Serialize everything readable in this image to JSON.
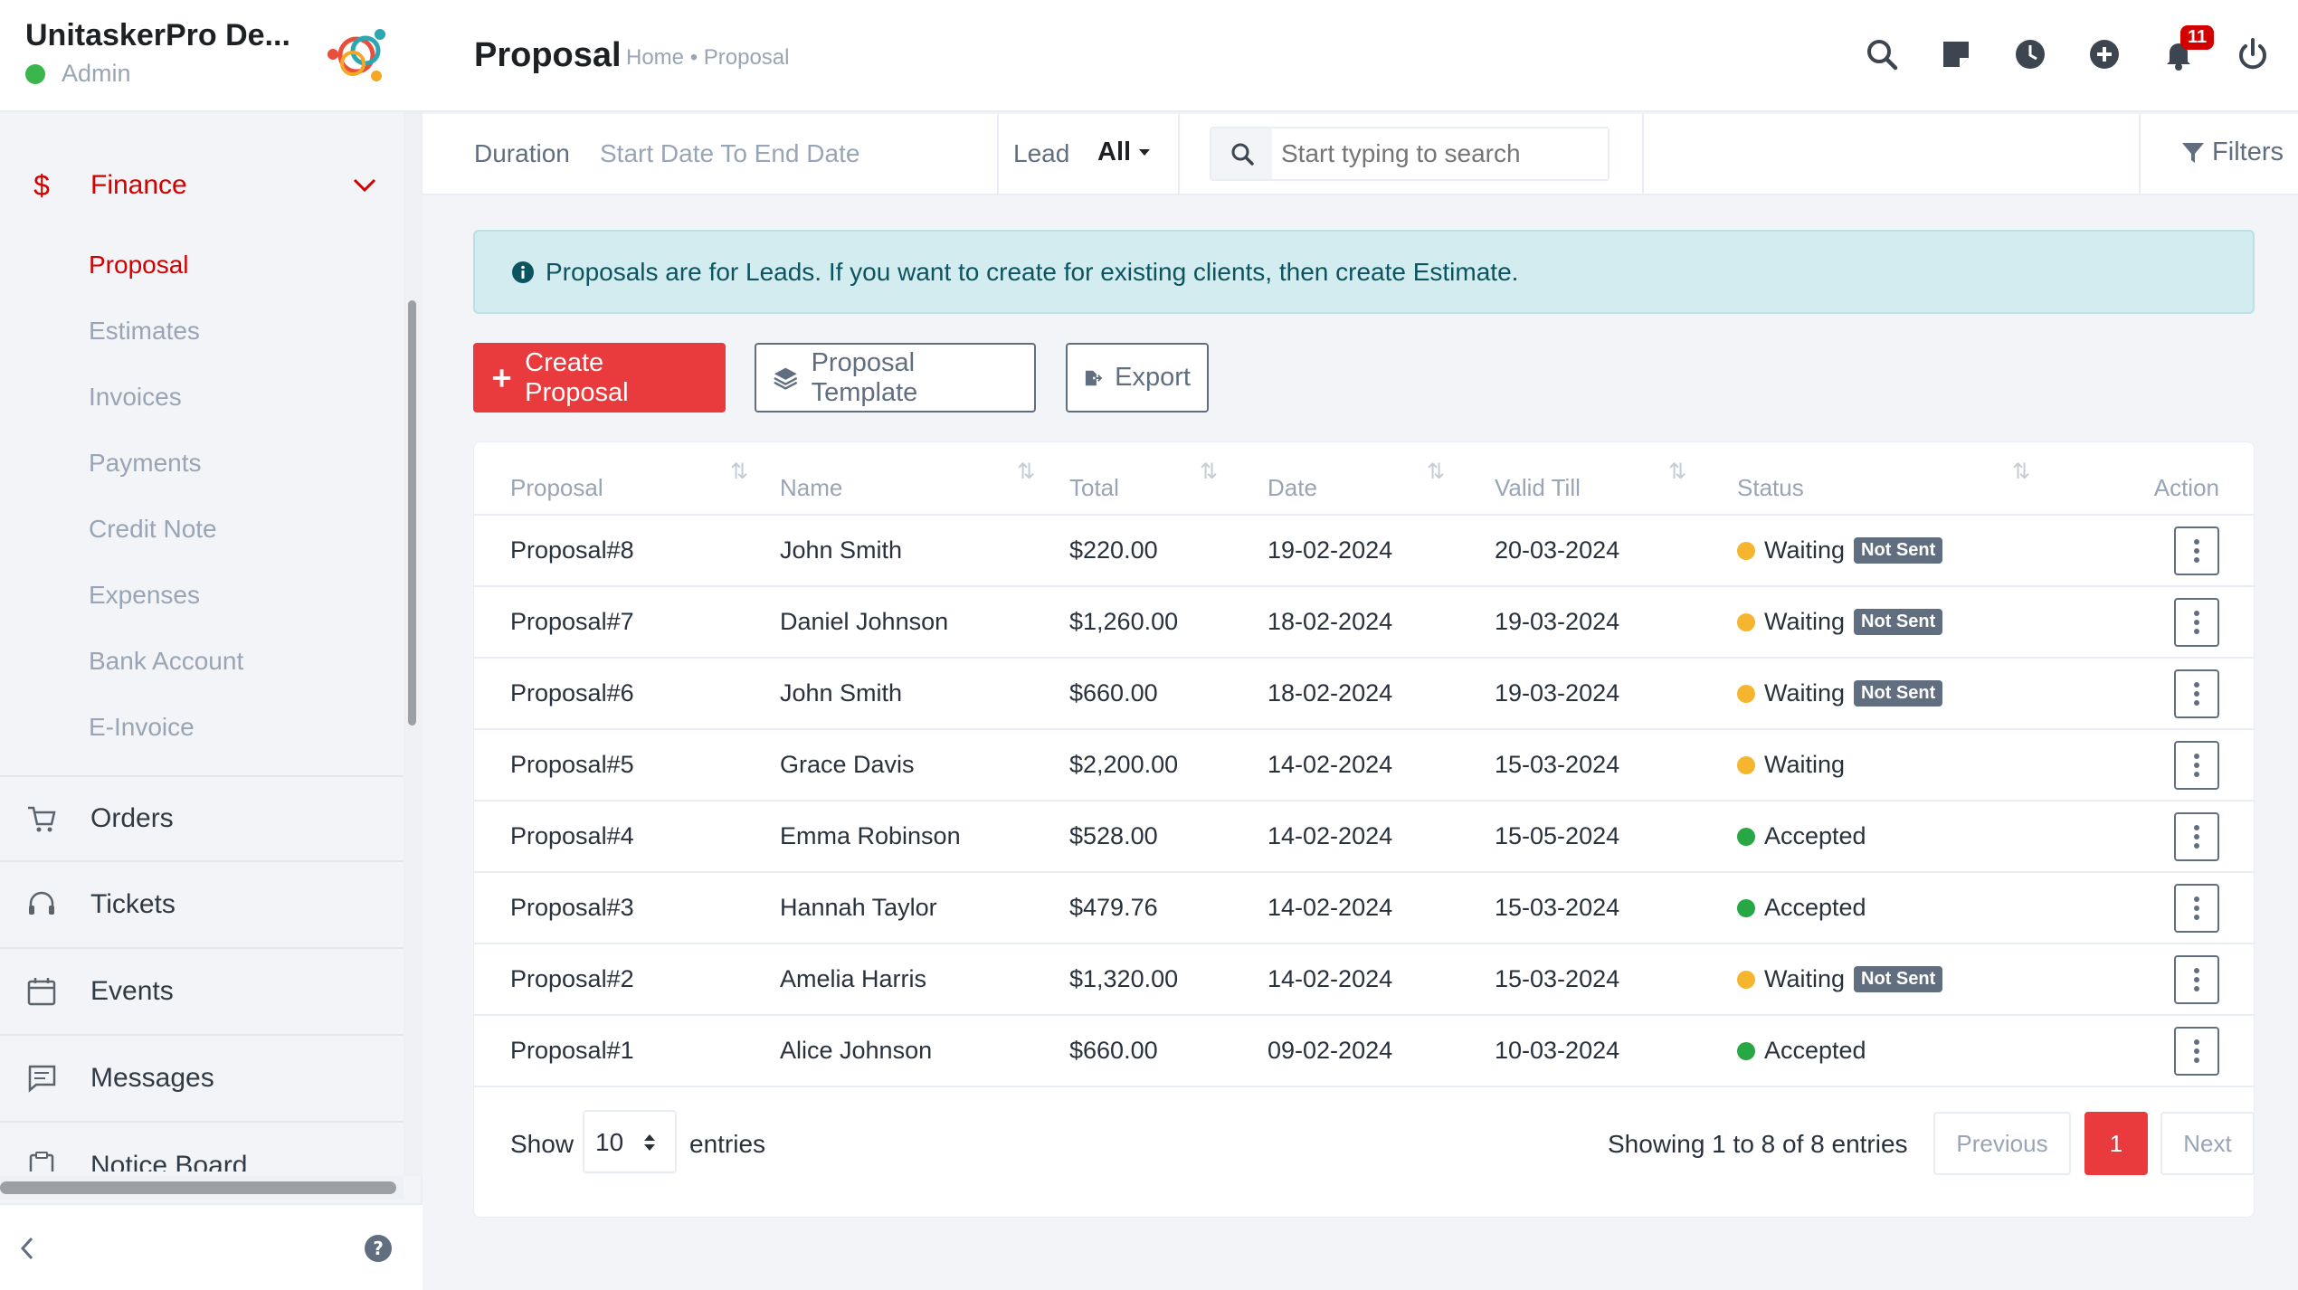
{
  "app": {
    "company": "UnitaskerPro De...",
    "role": "Admin"
  },
  "sidebar": {
    "finance": {
      "label": "Finance",
      "icon": "dollar-icon"
    },
    "finance_items": [
      "Proposal",
      "Estimates",
      "Invoices",
      "Payments",
      "Credit Note",
      "Expenses",
      "Bank Account",
      "E-Invoice"
    ],
    "main_items": [
      {
        "label": "Orders",
        "icon": "cart-icon"
      },
      {
        "label": "Tickets",
        "icon": "headset-icon"
      },
      {
        "label": "Events",
        "icon": "calendar-icon"
      },
      {
        "label": "Messages",
        "icon": "message-icon"
      },
      {
        "label": "Notice Board",
        "icon": "clipboard-icon"
      }
    ]
  },
  "header": {
    "title": "Proposal",
    "breadcrumb": "Home • Proposal",
    "notification_count": "11"
  },
  "filters": {
    "duration_label": "Duration",
    "duration_value": "Start Date To End Date",
    "lead_label": "Lead",
    "lead_value": "All",
    "search_placeholder": "Start typing to search",
    "filters_label": "Filters"
  },
  "alert": {
    "text": "Proposals are for Leads. If you want to create for existing clients, then create Estimate."
  },
  "actions": {
    "create": "Create Proposal",
    "template": "Proposal Template",
    "export": "Export"
  },
  "table": {
    "headers": [
      "Proposal",
      "Name",
      "Total",
      "Date",
      "Valid Till",
      "Status",
      "Action"
    ],
    "rows": [
      {
        "proposal": "Proposal#8",
        "name": "John Smith",
        "total": "$220.00",
        "date": "19-02-2024",
        "valid": "20-03-2024",
        "status": "Waiting",
        "badge": "Not Sent"
      },
      {
        "proposal": "Proposal#7",
        "name": "Daniel Johnson",
        "total": "$1,260.00",
        "date": "18-02-2024",
        "valid": "19-03-2024",
        "status": "Waiting",
        "badge": "Not Sent"
      },
      {
        "proposal": "Proposal#6",
        "name": "John Smith",
        "total": "$660.00",
        "date": "18-02-2024",
        "valid": "19-03-2024",
        "status": "Waiting",
        "badge": "Not Sent"
      },
      {
        "proposal": "Proposal#5",
        "name": "Grace Davis",
        "total": "$2,200.00",
        "date": "14-02-2024",
        "valid": "15-03-2024",
        "status": "Waiting",
        "badge": ""
      },
      {
        "proposal": "Proposal#4",
        "name": "Emma Robinson",
        "total": "$528.00",
        "date": "14-02-2024",
        "valid": "15-05-2024",
        "status": "Accepted",
        "badge": ""
      },
      {
        "proposal": "Proposal#3",
        "name": "Hannah Taylor",
        "total": "$479.76",
        "date": "14-02-2024",
        "valid": "15-03-2024",
        "status": "Accepted",
        "badge": ""
      },
      {
        "proposal": "Proposal#2",
        "name": "Amelia Harris",
        "total": "$1,320.00",
        "date": "14-02-2024",
        "valid": "15-03-2024",
        "status": "Waiting",
        "badge": "Not Sent"
      },
      {
        "proposal": "Proposal#1",
        "name": "Alice Johnson",
        "total": "$660.00",
        "date": "09-02-2024",
        "valid": "10-03-2024",
        "status": "Accepted",
        "badge": ""
      }
    ]
  },
  "pagination": {
    "show_label": "Show",
    "page_size": "10",
    "entries_label": "entries",
    "summary": "Showing 1 to 8 of 8 entries",
    "previous": "Previous",
    "current": "1",
    "next": "Next"
  },
  "colors": {
    "accent": "#e93a3d",
    "waiting": "#f5b52e",
    "accepted": "#28a745"
  }
}
